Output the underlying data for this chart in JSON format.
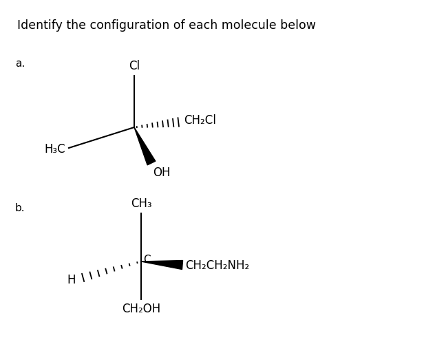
{
  "title": "Identify the configuration of each molecule below",
  "title_fontsize": 12.5,
  "background_color": "#ffffff",
  "label_a": "a.",
  "label_b": "b.",
  "label_fontsize": 11,
  "mol_fontsize": 12
}
